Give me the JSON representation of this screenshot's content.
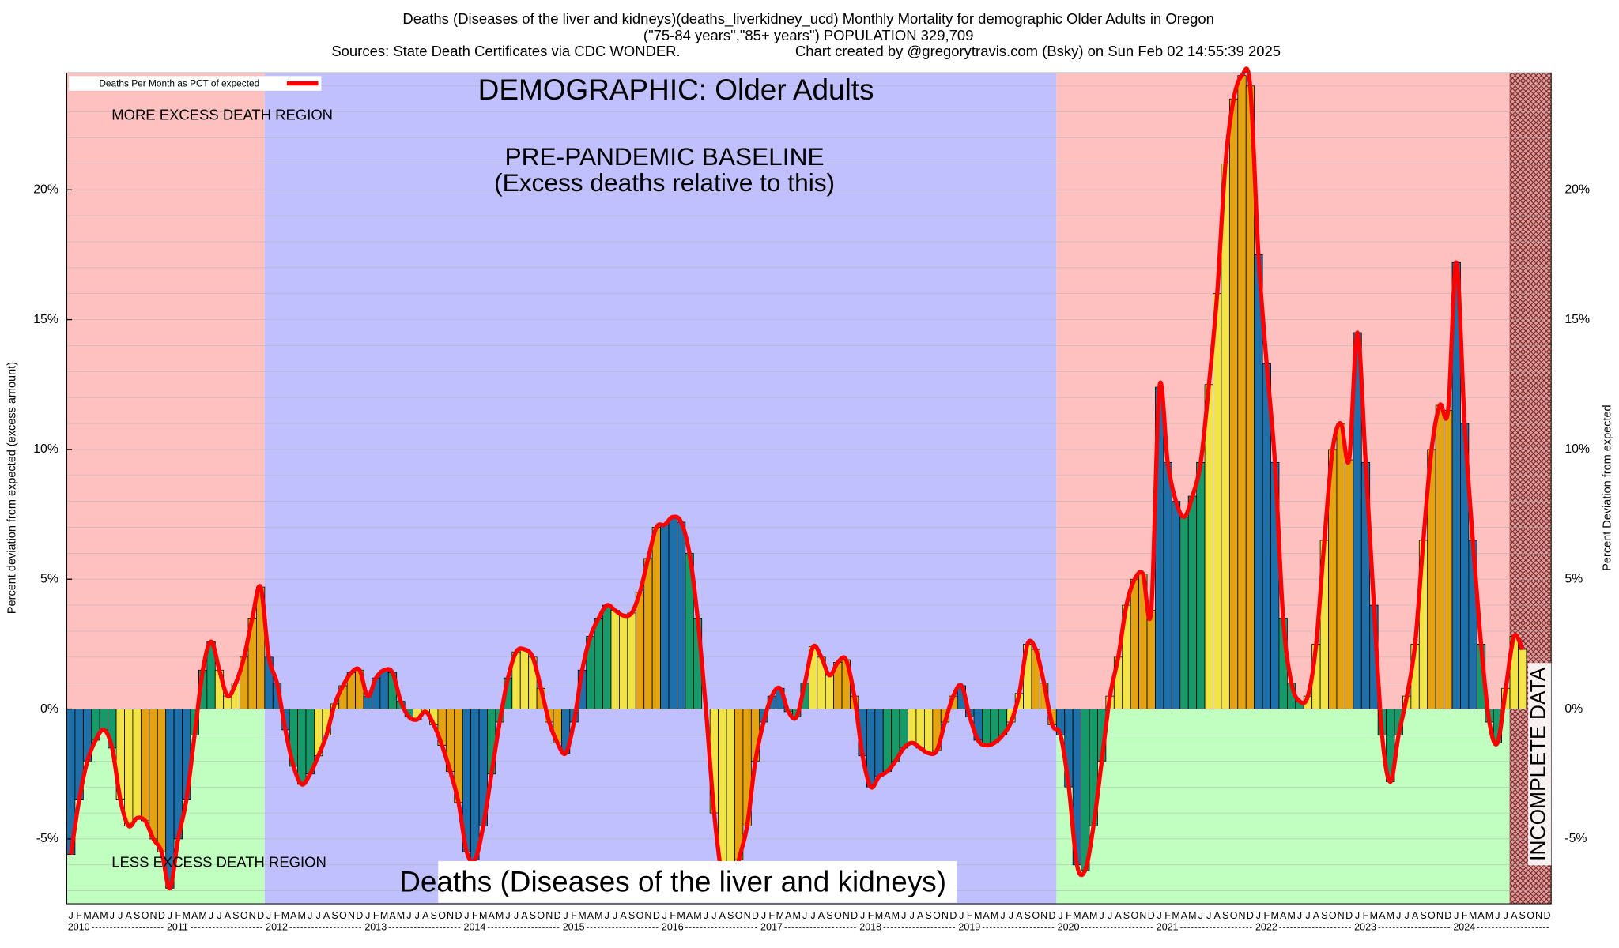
{
  "chart_data": {
    "type": "bar",
    "title": "Deaths (Diseases of the liver and kidneys)(deaths_liverkidney_ucd) Monthly Mortality for demographic Older Adults in Oregon",
    "subtitle": "(\"75-84 years\",\"85+ years\") POPULATION 329,709",
    "sources": "Sources: State Death Certificates via CDC WONDER.",
    "credit": "Chart created by @gregorytravis.com (Bsky) on Sun Feb 02 14:55:39 2025",
    "demographic": "DEMOGRAPHIC: Older Adults",
    "more_region": "MORE EXCESS DEATH REGION",
    "less_region": "LESS EXCESS DEATH REGION",
    "baseline": {
      "label": "PRE-PANDEMIC BASELINE",
      "sublabel": "(Excess deaths relative to this)",
      "from": 2012,
      "to": 2019,
      "color": "#c0c0ff"
    },
    "excess_color": "#ffc0c0",
    "deficit_color": "#c0ffc0",
    "incomplete": {
      "label": "INCOMPLETE DATA",
      "from": [
        2024,
        8
      ],
      "color": "#8b1a1a"
    },
    "cause": "Deaths (Diseases of the liver and kidneys)",
    "y_label": "Percent deviation from expected (excess amount)",
    "y2_label": "Percent Deviation from expected",
    "legend": {
      "name": "Deaths Per Month as PCT of expected",
      "color": "#ff0000",
      "position": "upper left"
    },
    "months": [
      "J",
      "F",
      "M",
      "A",
      "M",
      "J",
      "J",
      "A",
      "S",
      "O",
      "N",
      "D"
    ],
    "years": [
      2010,
      2011,
      2012,
      2013,
      2014,
      2015,
      2016,
      2017,
      2018,
      2019,
      2020,
      2021,
      2022,
      2023,
      2024
    ],
    "bar_colors": [
      "#1f6fa8",
      "#169a6a",
      "#f2e447",
      "#e3a312"
    ],
    "values": [
      -5.6,
      -3.5,
      -2.0,
      -1.2,
      -0.8,
      -1.5,
      -3.5,
      -4.5,
      -4.2,
      -4.3,
      -5.0,
      -5.5,
      -6.9,
      -5.0,
      -3.5,
      -1.0,
      1.5,
      2.6,
      1.5,
      0.5,
      1.0,
      2.0,
      3.5,
      4.7,
      2.0,
      1.0,
      -0.8,
      -2.2,
      -2.9,
      -2.5,
      -1.8,
      -1.0,
      0.2,
      0.9,
      1.4,
      1.5,
      0.5,
      1.2,
      1.5,
      1.4,
      0.3,
      -0.3,
      -0.4,
      -0.1,
      -0.6,
      -1.4,
      -2.4,
      -3.6,
      -5.5,
      -5.8,
      -4.5,
      -2.5,
      -0.5,
      1.2,
      2.2,
      2.3,
      2.0,
      0.8,
      -0.5,
      -1.3,
      -1.7,
      -0.5,
      1.5,
      2.8,
      3.5,
      4.0,
      3.8,
      3.6,
      3.7,
      4.5,
      5.8,
      7.0,
      7.1,
      7.4,
      7.2,
      6.0,
      3.5,
      0.0,
      -4.0,
      -6.5,
      -7.3,
      -5.8,
      -4.5,
      -2.0,
      -0.5,
      0.5,
      0.8,
      -0.1,
      -0.3,
      1.0,
      2.4,
      2.0,
      1.3,
      1.8,
      1.9,
      0.5,
      -1.8,
      -3.0,
      -2.6,
      -2.4,
      -2.0,
      -1.5,
      -1.3,
      -1.5,
      -1.7,
      -1.6,
      -0.5,
      0.5,
      0.9,
      -0.3,
      -1.2,
      -1.4,
      -1.3,
      -1.0,
      -0.5,
      0.6,
      2.5,
      2.3,
      1.0,
      -0.6,
      -1.0,
      -3.0,
      -6.0,
      -6.2,
      -4.5,
      -2.0,
      0.5,
      2.0,
      4.0,
      5.0,
      5.2,
      3.8,
      12.4,
      9.5,
      8.0,
      7.4,
      8.2,
      9.5,
      12.5,
      16.0,
      21.0,
      23.5,
      24.4,
      24.0,
      17.5,
      13.3,
      9.5,
      3.5,
      1.0,
      0.3,
      0.5,
      2.5,
      6.5,
      10.0,
      11.0,
      9.6,
      14.5,
      9.5,
      4.0,
      -1.0,
      -2.8,
      -1.0,
      0.5,
      2.5,
      6.5,
      10.0,
      11.7,
      11.5,
      17.2,
      11.0,
      6.5,
      2.5,
      -0.5,
      -1.3,
      0.8,
      2.8,
      2.3,
      null,
      null,
      null
    ],
    "ylim": [
      -7.5,
      24.5
    ],
    "yticks": [
      {
        "value": -5,
        "label": "-5%"
      },
      {
        "value": 0,
        "label": "0%"
      },
      {
        "value": 5,
        "label": "5%"
      },
      {
        "value": 10,
        "label": "10%"
      },
      {
        "value": 15,
        "label": "15%"
      },
      {
        "value": 20,
        "label": "20%"
      }
    ],
    "minor_yticks": [
      -7,
      -6,
      -5,
      -4,
      -3,
      -2,
      -1,
      0,
      1,
      2,
      3,
      4,
      5,
      6,
      7,
      8,
      9,
      10,
      11,
      12,
      13,
      14,
      15,
      16,
      17,
      18,
      19,
      20,
      21,
      22,
      23,
      24
    ],
    "grid": true
  }
}
